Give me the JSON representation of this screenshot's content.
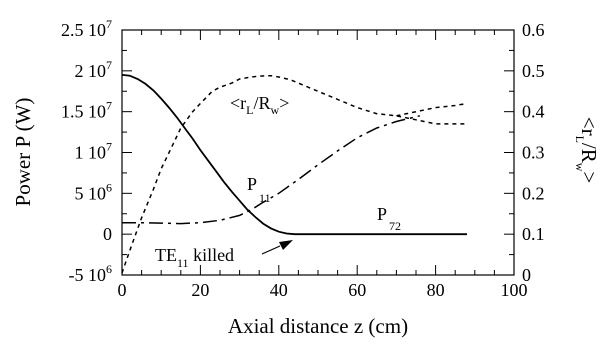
{
  "chart_data": {
    "type": "line",
    "xlabel": "Axial distance z (cm)",
    "ylabel_left": "Power P (W)",
    "ylabel_right": {
      "main": "<r",
      "sub1": "L",
      "mid": "/R",
      "sub2": "w",
      "end": ">"
    },
    "xlim": [
      0,
      100
    ],
    "ylim_left": [
      -5000000,
      25000000
    ],
    "ylim_right": [
      0,
      0.6
    ],
    "x_ticks": [
      "0",
      "20",
      "40",
      "60",
      "80",
      "100"
    ],
    "y_left_ticks": [
      {
        "mant": "-5",
        "exp": "6",
        "v": -5000000
      },
      {
        "mant": "0",
        "exp": "",
        "v": 0
      },
      {
        "mant": "5",
        "exp": "6",
        "v": 5000000
      },
      {
        "mant": "1",
        "exp": "7",
        "v": 10000000
      },
      {
        "mant": "1.5",
        "exp": "7",
        "v": 15000000
      },
      {
        "mant": "2",
        "exp": "7",
        "v": 20000000
      },
      {
        "mant": "2.5",
        "exp": "7",
        "v": 25000000
      }
    ],
    "y_right_ticks": [
      "0",
      "0.1",
      "0.2",
      "0.3",
      "0.4",
      "0.5",
      "0.6"
    ],
    "series": [
      {
        "name": "P11",
        "axis": "left",
        "style": "solid",
        "x": [
          0,
          2,
          4,
          6,
          8,
          10,
          12,
          14,
          16,
          18,
          20,
          22,
          24,
          26,
          28,
          30,
          32,
          34,
          36,
          38,
          40,
          42,
          44,
          50,
          60,
          70,
          80,
          88
        ],
        "y": [
          19500000,
          19400000,
          19000000,
          18400000,
          17600000,
          16600000,
          15500000,
          14300000,
          13000000,
          11700000,
          10300000,
          9000000,
          7700000,
          6400000,
          5200000,
          4100000,
          3000000,
          2100000,
          1300000,
          700000,
          300000,
          80000,
          0,
          0,
          0,
          0,
          0,
          0
        ]
      },
      {
        "name": "P72",
        "axis": "left",
        "style": "dash-dot",
        "x": [
          0,
          5,
          10,
          15,
          20,
          25,
          30,
          33,
          36,
          40,
          45,
          50,
          55,
          60,
          65,
          70,
          76
        ],
        "y": [
          1400000,
          1400000,
          1350000,
          1300000,
          1400000,
          1700000,
          2300000,
          3000000,
          3900000,
          5000000,
          6700000,
          8500000,
          10200000,
          11800000,
          13000000,
          13800000,
          14500000
        ]
      },
      {
        "name": "<rL/Rw>",
        "axis": "right",
        "style": "dotted",
        "x": [
          0,
          2,
          5,
          8,
          10,
          13,
          15,
          18,
          20,
          23,
          25,
          28,
          30,
          33,
          35,
          38,
          40,
          43,
          45,
          50,
          55,
          60,
          65,
          70,
          75,
          80,
          85,
          88
        ],
        "y": [
          0.005,
          0.06,
          0.14,
          0.21,
          0.26,
          0.32,
          0.36,
          0.4,
          0.42,
          0.45,
          0.46,
          0.47,
          0.48,
          0.485,
          0.487,
          0.488,
          0.485,
          0.478,
          0.47,
          0.45,
          0.43,
          0.41,
          0.395,
          0.39,
          0.38,
          0.37,
          0.37,
          0.37
        ]
      },
      {
        "name": "<rL/Rw> (end)",
        "axis": "right",
        "style": "dotted",
        "x": [
          70,
          75,
          80,
          85,
          88
        ],
        "y": [
          0.39,
          0.4,
          0.41,
          0.415,
          0.42
        ]
      }
    ],
    "labels": {
      "p11": {
        "main": "P",
        "sub": "11"
      },
      "p72": {
        "main": "P",
        "sub": "72"
      },
      "rl": {
        "main": "<r",
        "sub1": "L",
        "mid": "/R",
        "sub2": "w",
        "end": ">"
      },
      "te": {
        "main": "TE",
        "sub": "11",
        "rest": " killed"
      }
    },
    "grid": false,
    "colors": {
      "line": "#000000",
      "background": "#ffffff"
    }
  }
}
